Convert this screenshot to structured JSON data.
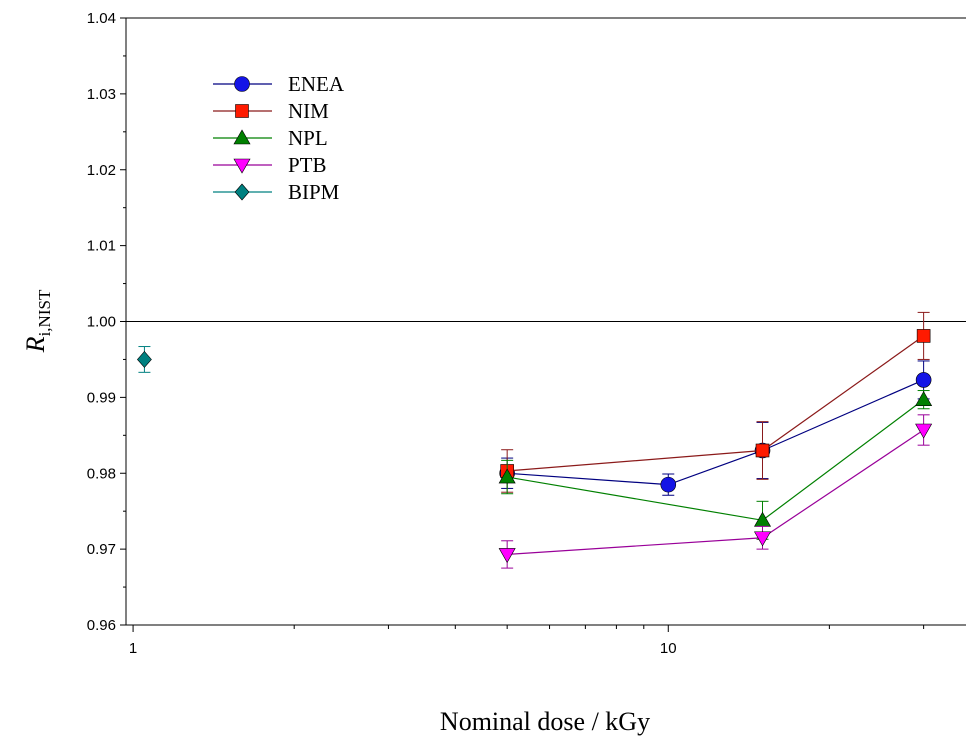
{
  "chart_data": {
    "type": "scatter",
    "xlabel": "Nominal dose / kGy",
    "ylabel": {
      "main": "R",
      "sub": "i,NIST"
    },
    "xscale": "log",
    "xlim": [
      0.97,
      36
    ],
    "ylim": [
      0.96,
      1.04
    ],
    "x_ticks": [
      1,
      10
    ],
    "x_tick_labels": [
      "1",
      "10"
    ],
    "y_ticks": [
      0.96,
      0.97,
      0.98,
      0.99,
      1.0,
      1.01,
      1.02,
      1.03,
      1.04
    ],
    "y_tick_labels": [
      "0.96",
      "0.97",
      "0.98",
      "0.99",
      "1.00",
      "1.01",
      "1.02",
      "1.03",
      "1.04"
    ],
    "reference_line": 1.0,
    "grid": false,
    "legend_position": "top-left",
    "series": [
      {
        "name": "ENEA",
        "marker": "circle",
        "color": "#1414e6",
        "line_color": "#000080",
        "x": [
          5,
          10,
          15,
          30
        ],
        "y": [
          0.98,
          0.9785,
          0.983,
          0.9923
        ],
        "err": [
          0.002,
          0.0014,
          0.0037,
          0.0025
        ]
      },
      {
        "name": "NIM",
        "marker": "square",
        "color": "#ff1a00",
        "line_color": "#8b1a1a",
        "x": [
          5,
          15,
          30
        ],
        "y": [
          0.9803,
          0.983,
          0.9981
        ],
        "err": [
          0.0028,
          0.0038,
          0.0031
        ]
      },
      {
        "name": "NPL",
        "marker": "triangle-up",
        "color": "#008000",
        "line_color": "#008000",
        "x": [
          5,
          15,
          30
        ],
        "y": [
          0.9795,
          0.9738,
          0.9897
        ],
        "err": [
          0.0022,
          0.0025,
          0.0012
        ]
      },
      {
        "name": "PTB",
        "marker": "triangle-down",
        "color": "#ff00ff",
        "line_color": "#990099",
        "x": [
          5,
          15,
          30
        ],
        "y": [
          0.9693,
          0.9715,
          0.9857
        ],
        "err": [
          0.0018,
          0.0015,
          0.002
        ]
      },
      {
        "name": "BIPM",
        "marker": "diamond",
        "color": "#008080",
        "line_color": "#008080",
        "x": [
          1.05
        ],
        "y": [
          0.995
        ],
        "err": [
          0.0017
        ]
      }
    ]
  }
}
